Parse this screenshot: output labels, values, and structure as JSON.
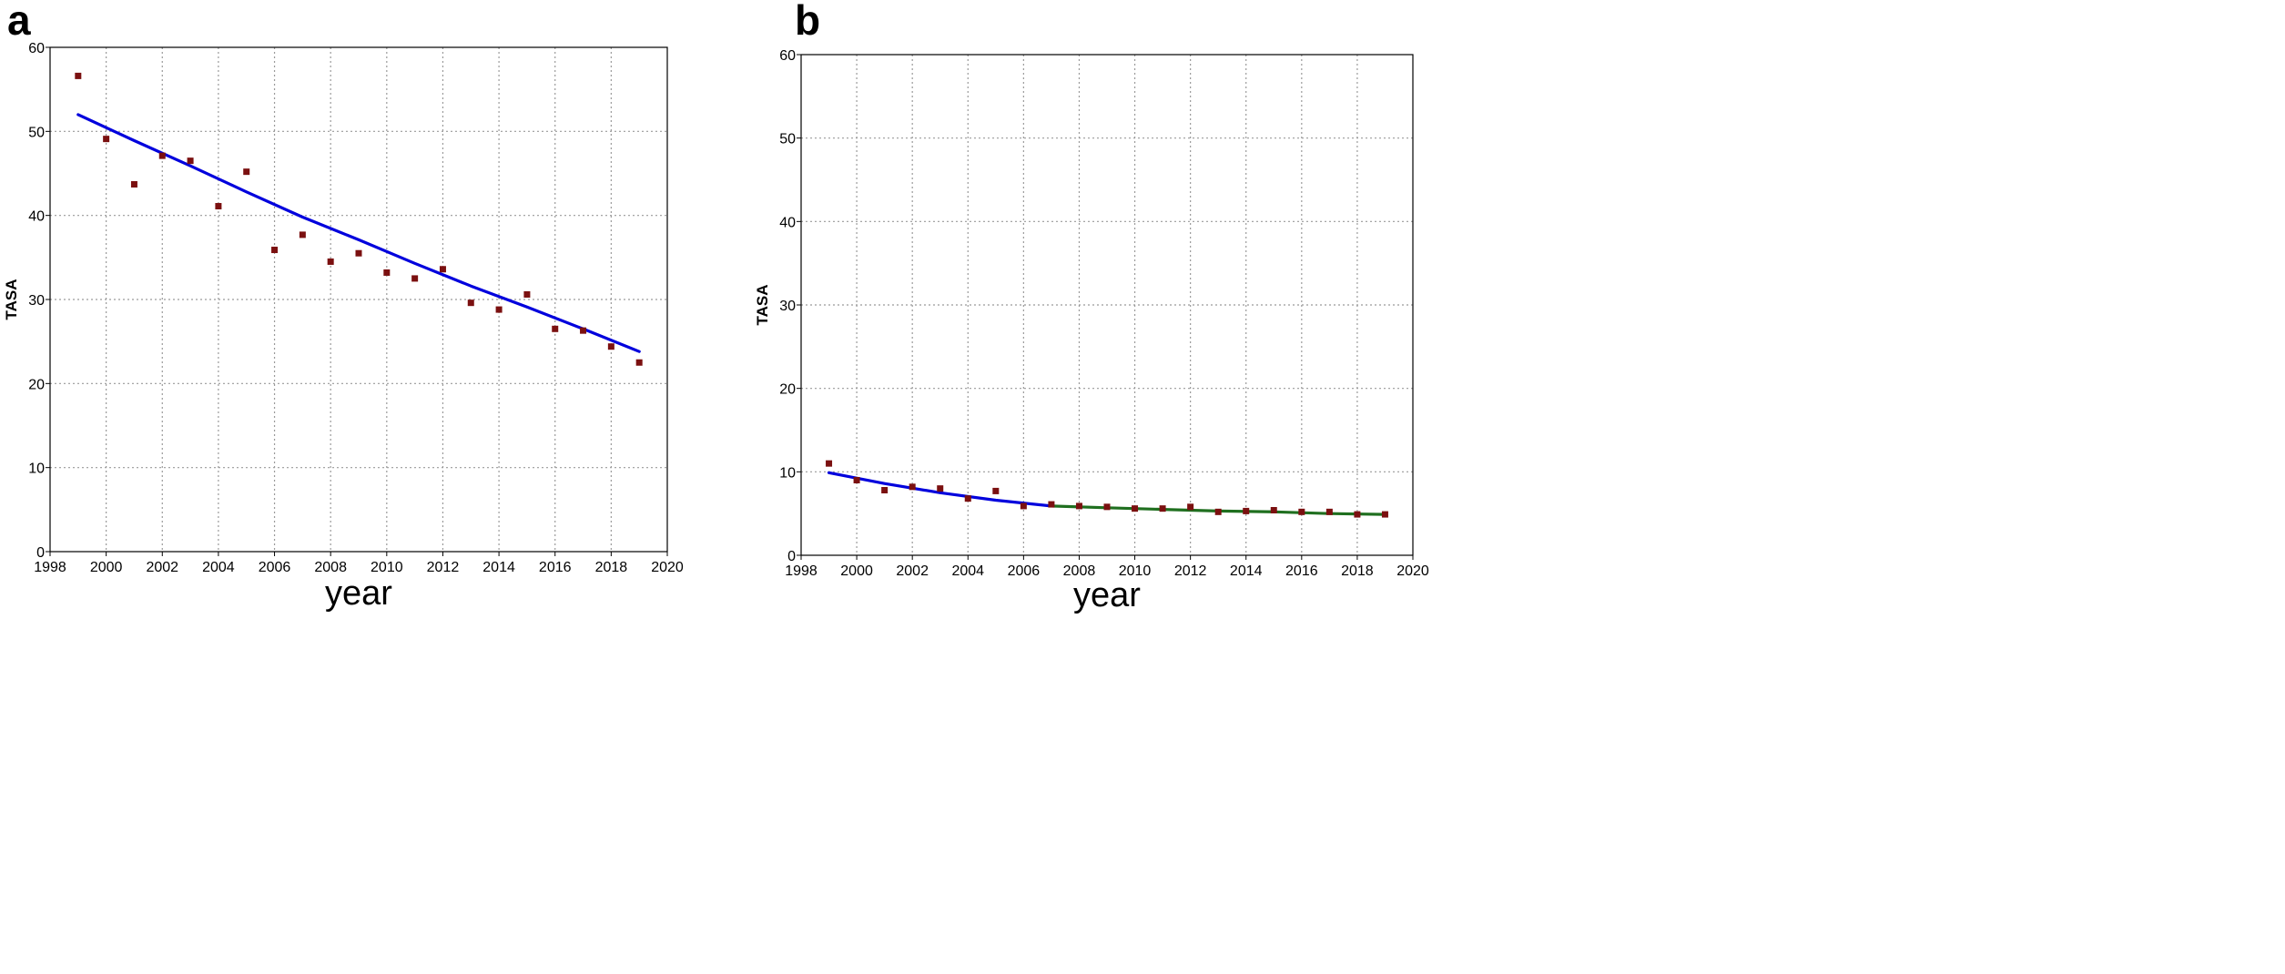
{
  "chart_data": [
    {
      "panel": "a",
      "type": "scatter",
      "xlabel": "year",
      "ylabel": "TASA",
      "xlim": [
        1998,
        2020
      ],
      "ylim": [
        0,
        60
      ],
      "xticks": [
        1998,
        2000,
        2002,
        2004,
        2006,
        2008,
        2010,
        2012,
        2014,
        2016,
        2018,
        2020
      ],
      "yticks": [
        0,
        10,
        20,
        30,
        40,
        50,
        60
      ],
      "grid": true,
      "point_color": "#7b1010",
      "points": {
        "x": [
          1999,
          2000,
          2001,
          2002,
          2003,
          2004,
          2005,
          2006,
          2007,
          2008,
          2009,
          2010,
          2011,
          2012,
          2013,
          2014,
          2015,
          2016,
          2017,
          2018,
          2019
        ],
        "y": [
          56.6,
          49.1,
          43.7,
          47.1,
          46.5,
          41.1,
          45.2,
          35.9,
          37.7,
          34.5,
          35.5,
          33.2,
          32.5,
          33.6,
          29.6,
          28.8,
          30.6,
          26.5,
          26.3,
          24.4,
          22.5
        ]
      },
      "fits": [
        {
          "color": "#0000dd",
          "x": [
            1999,
            2001,
            2003,
            2005,
            2007,
            2009,
            2011,
            2013,
            2015,
            2017,
            2019
          ],
          "y": [
            52.0,
            48.9,
            45.9,
            42.8,
            39.8,
            37.1,
            34.3,
            31.6,
            29.1,
            26.5,
            23.8
          ]
        }
      ]
    },
    {
      "panel": "b",
      "type": "scatter",
      "xlabel": "year",
      "ylabel": "TASA",
      "xlim": [
        1998,
        2020
      ],
      "ylim": [
        0,
        60
      ],
      "xticks": [
        1998,
        2000,
        2002,
        2004,
        2006,
        2008,
        2010,
        2012,
        2014,
        2016,
        2018,
        2020
      ],
      "yticks": [
        0,
        10,
        20,
        30,
        40,
        50,
        60
      ],
      "grid": true,
      "point_color": "#7b1010",
      "points": {
        "x": [
          1999,
          2000,
          2001,
          2002,
          2003,
          2004,
          2005,
          2006,
          2007,
          2008,
          2009,
          2010,
          2011,
          2012,
          2013,
          2014,
          2015,
          2016,
          2017,
          2018,
          2019
        ],
        "y": [
          11.0,
          9.0,
          7.8,
          8.2,
          8.0,
          6.8,
          7.7,
          5.9,
          6.1,
          5.9,
          5.8,
          5.6,
          5.6,
          5.8,
          5.2,
          5.3,
          5.4,
          5.2,
          5.2,
          4.9,
          4.9
        ]
      },
      "fits": [
        {
          "color": "#0000dd",
          "x": [
            1999,
            2001,
            2003,
            2005,
            2007
          ],
          "y": [
            9.9,
            8.6,
            7.5,
            6.6,
            5.9
          ]
        },
        {
          "color": "#1f6f1f",
          "x": [
            2007,
            2009,
            2011,
            2013,
            2015,
            2017,
            2019
          ],
          "y": [
            5.9,
            5.7,
            5.5,
            5.3,
            5.2,
            5.0,
            4.9
          ]
        }
      ]
    }
  ]
}
